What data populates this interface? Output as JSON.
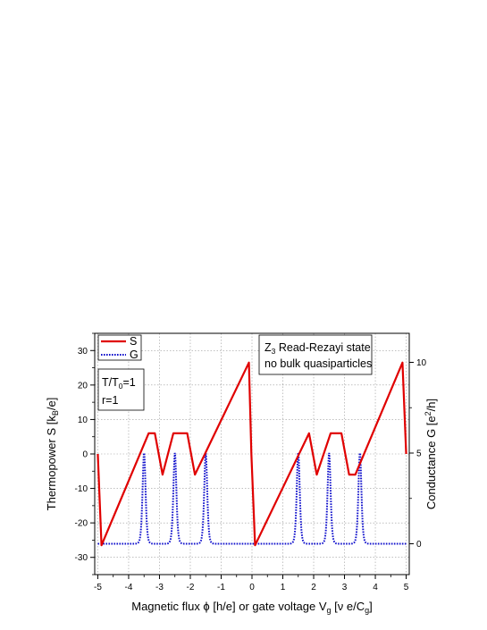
{
  "chart_data": {
    "type": "line",
    "xlabel": "Magnetic flux ϕ [h/e] or gate voltage V",
    "xlabel_sub": "g",
    "xlabel_tail": " [ν e/C",
    "xlabel_tail_sub": "g",
    "xlabel_end": "]",
    "ylabel_left": "Thermopower S [k",
    "ylabel_left_sub": "B",
    "ylabel_left_end": "/e]",
    "ylabel_right": "Conductance G [e",
    "ylabel_right_sup": "2",
    "ylabel_right_end": "/h]",
    "xlim": [
      -5.1,
      5.1
    ],
    "ylim_left": [
      -35,
      35
    ],
    "ylim_right": [
      -1.7,
      11.6
    ],
    "grid": true,
    "legend_placement": "top-left",
    "x_ticks": [
      "-5",
      "-4",
      "-3",
      "-2",
      "-1",
      "0",
      "1",
      "2",
      "3",
      "4",
      "5"
    ],
    "y_left_ticks": [
      "-30",
      "-20",
      "-10",
      "0",
      "10",
      "20",
      "30"
    ],
    "y_right_ticks": [
      "0",
      "5",
      "10"
    ],
    "series": [
      {
        "name": "S",
        "axis": "left",
        "color": "#e00000",
        "style": "solid",
        "x": [
          -5.0,
          -4.88,
          -3.35,
          -3.15,
          -2.9,
          -2.55,
          -2.1,
          -1.85,
          -0.1,
          -0.02,
          0.1,
          1.85,
          2.1,
          2.55,
          2.9,
          3.15,
          3.35,
          4.88,
          5.0
        ],
        "values": [
          0,
          -26.5,
          6.0,
          6.0,
          -6.0,
          6.0,
          6.0,
          -6.0,
          26.5,
          0,
          -26.5,
          6.0,
          -6.0,
          6.0,
          6.0,
          -6.0,
          -6.0,
          26.5,
          0
        ]
      },
      {
        "name": "G",
        "axis": "right",
        "color": "#1010cc",
        "style": "dotted",
        "baseline": 0,
        "peaks_x": [
          -3.5,
          -2.5,
          -1.5,
          1.5,
          2.5,
          3.5
        ],
        "peak_height": 5.0,
        "peak_width": 0.065
      }
    ],
    "annotations": {
      "state_line1_pre": "Z",
      "state_line1_sub": "3",
      "state_line1_post": " Read-Rezayi state",
      "state_line2": "no bulk quasiparticles",
      "temp_pre": "T/T",
      "temp_sub": "0",
      "temp_post": "=1",
      "r": "r=1"
    }
  }
}
